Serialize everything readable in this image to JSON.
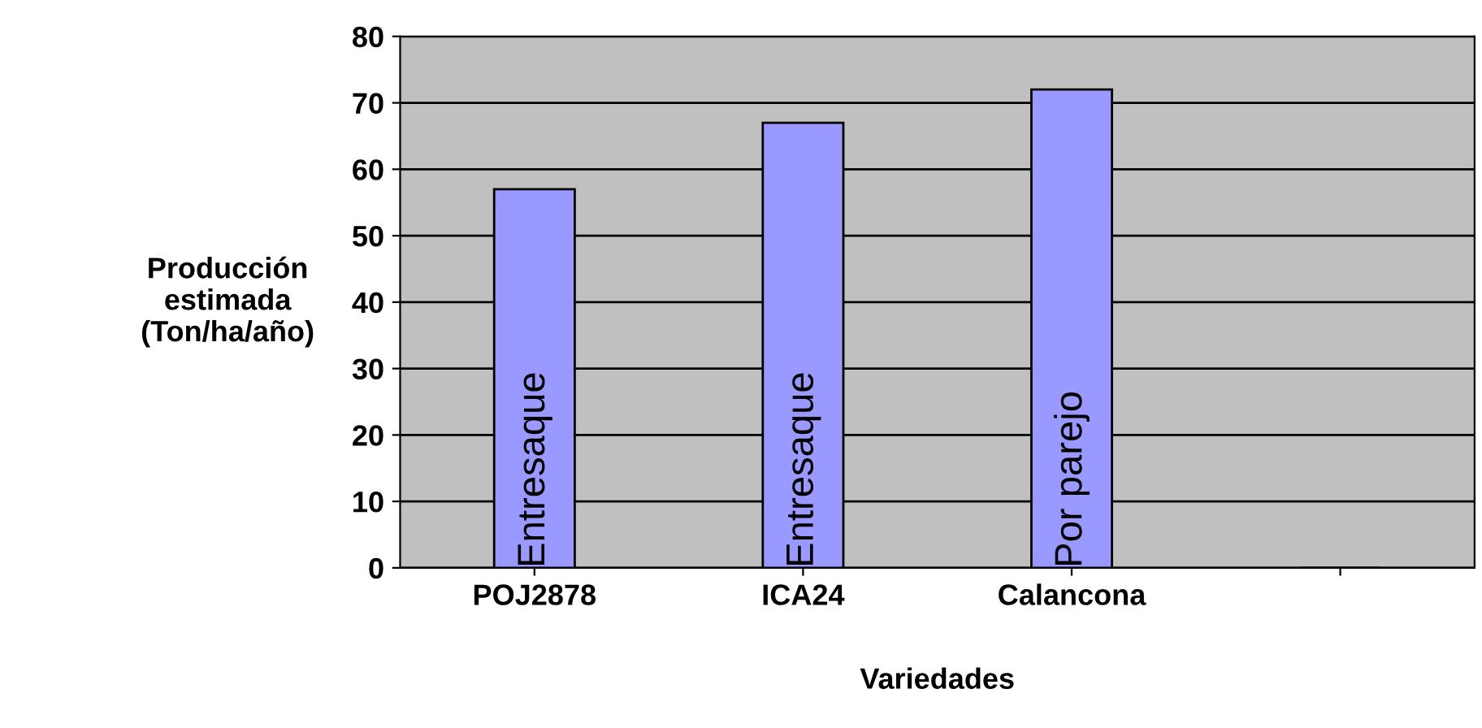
{
  "chart_data": {
    "type": "bar",
    "xlabel": "Variedades",
    "ylabel": "Producción\nestimada\n(Ton/ha/año)",
    "categories": [
      "POJ2878",
      "ICA24",
      "Calancona",
      null
    ],
    "values": [
      57,
      67,
      72,
      null
    ],
    "color": "#9999ff",
    "ylim": [
      0,
      80
    ],
    "yticks": [
      0,
      10,
      20,
      30,
      40,
      50,
      60,
      70,
      80
    ],
    "grid": "y",
    "value_labels": [
      "Entresaque",
      "Entresaque",
      "Por parejo",
      null
    ]
  }
}
